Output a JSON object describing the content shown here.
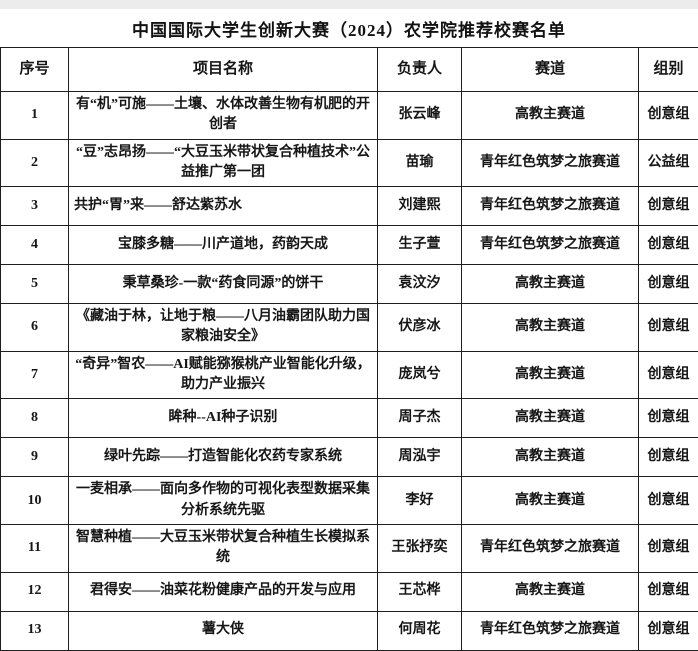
{
  "page": {
    "title": "中国国际大学生创新大赛（2024）农学院推荐校赛名单"
  },
  "colors": {
    "border": "#1f1f1f",
    "text": "#161616",
    "background": "#ffffff",
    "page_background": "#ececec"
  },
  "table": {
    "columns": [
      "序号",
      "项目名称",
      "负责人",
      "赛道",
      "组别"
    ],
    "rows": [
      {
        "no": "1",
        "name": "有“机”可施——土壤、水体改善生物有机肥的开创者",
        "leader": "张云峰",
        "track": "高教主赛道",
        "group": "创意组",
        "name_align": "center",
        "tall": true
      },
      {
        "no": "2",
        "name": "“豆”志昂扬——“大豆玉米带状复合种植技术”公益推广第一团",
        "leader": "苗瑜",
        "track": "青年红色筑梦之旅赛道",
        "group": "公益组",
        "name_align": "center",
        "tall": true
      },
      {
        "no": "3",
        "name": "共护“胃”来——舒达紫苏水",
        "leader": "刘建熙",
        "track": "青年红色筑梦之旅赛道",
        "group": "创意组",
        "name_align": "left",
        "tall": false
      },
      {
        "no": "4",
        "name": "宝膝多糖——川产道地，药韵天成",
        "leader": "生子萱",
        "track": "青年红色筑梦之旅赛道",
        "group": "创意组",
        "name_align": "center",
        "tall": false
      },
      {
        "no": "5",
        "name": "秉草桑珍-一款“药食同源”的饼干",
        "leader": "袁汶汐",
        "track": "高教主赛道",
        "group": "创意组",
        "name_align": "center",
        "tall": false
      },
      {
        "no": "6",
        "name": "《藏油于林，让地于粮——八月油霸团队助力国家粮油安全》",
        "leader": "伏彦冰",
        "track": "高教主赛道",
        "group": "创意组",
        "name_align": "center",
        "tall": true
      },
      {
        "no": "7",
        "name": "“奇异”智农——AI赋能猕猴桃产业智能化升级，助力产业振兴",
        "leader": "庞岚兮",
        "track": "高教主赛道",
        "group": "创意组",
        "name_align": "center",
        "tall": true
      },
      {
        "no": "8",
        "name": "眸种--AI种子识别",
        "leader": "周子杰",
        "track": "高教主赛道",
        "group": "创意组",
        "name_align": "center",
        "tall": false
      },
      {
        "no": "9",
        "name": "绿叶先踪——打造智能化农药专家系统",
        "leader": "周泓宇",
        "track": "高教主赛道",
        "group": "创意组",
        "name_align": "center",
        "tall": false
      },
      {
        "no": "10",
        "name": "一麦相承——面向多作物的可视化表型数据采集分析系统先驱",
        "leader": "李好",
        "track": "高教主赛道",
        "group": "创意组",
        "name_align": "center",
        "tall": true
      },
      {
        "no": "11",
        "name": "智慧种植——大豆玉米带状复合种植生长模拟系统",
        "leader": "王张抒奕",
        "track": "青年红色筑梦之旅赛道",
        "group": "创意组",
        "name_align": "center",
        "tall": false
      },
      {
        "no": "12",
        "name": "君得安——油菜花粉健康产品的开发与应用",
        "leader": "王芯桦",
        "track": "高教主赛道",
        "group": "创意组",
        "name_align": "center",
        "tall": false
      },
      {
        "no": "13",
        "name": "薯大侠",
        "leader": "何周花",
        "track": "青年红色筑梦之旅赛道",
        "group": "创意组",
        "name_align": "center",
        "tall": false
      }
    ]
  }
}
